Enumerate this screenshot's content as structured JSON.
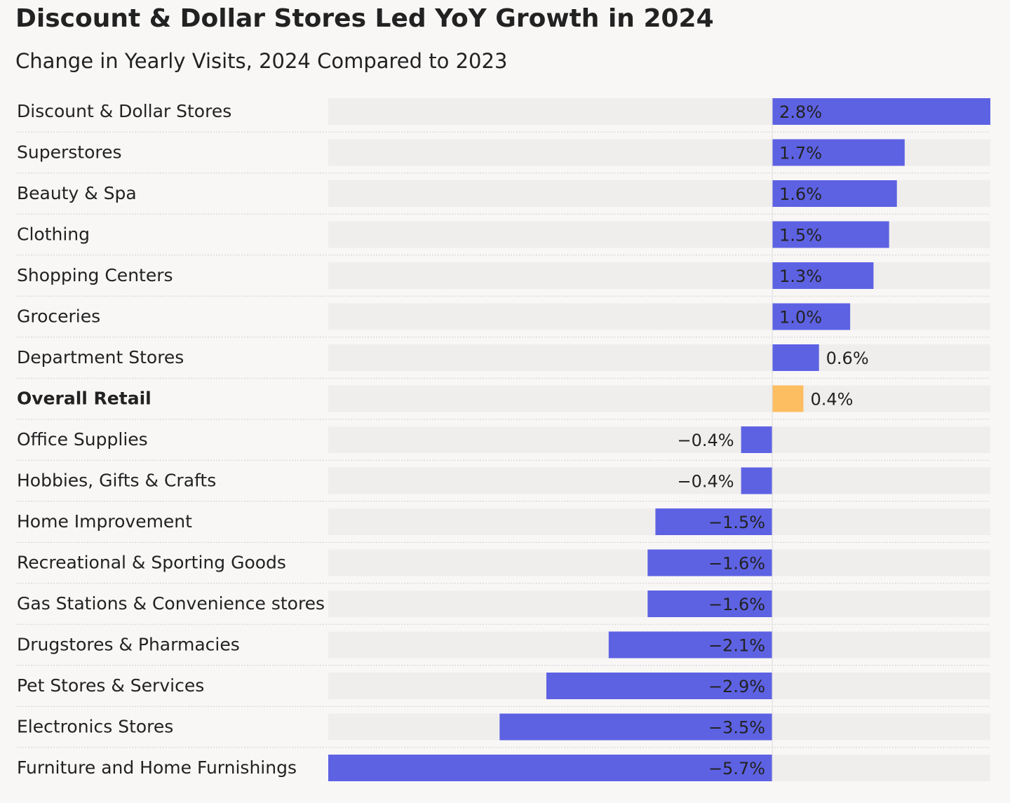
{
  "chart_data": {
    "type": "hbar",
    "title": "Discount & Dollar Stores Led YoY Growth in 2024",
    "subtitle": "Change in Yearly Visits, 2024 Compared to 2023",
    "categories": [
      "Discount & Dollar Stores",
      "Superstores",
      "Beauty & Spa",
      "Clothing",
      "Shopping Centers",
      "Groceries",
      "Department Stores",
      "Overall Retail",
      "Office Supplies",
      "Hobbies, Gifts & Crafts",
      "Home Improvement",
      "Recreational & Sporting Goods",
      "Gas Stations & Convenience stores",
      "Drugstores & Pharmacies",
      "Pet Stores & Services",
      "Electronics Stores",
      "Furniture and Home Furnishings"
    ],
    "values": [
      2.8,
      1.7,
      1.6,
      1.5,
      1.3,
      1.0,
      0.6,
      0.4,
      -0.4,
      -0.4,
      -1.5,
      -1.6,
      -1.6,
      -2.1,
      -2.9,
      -3.5,
      -5.7
    ],
    "value_labels": [
      "2.8%",
      "1.7%",
      "1.6%",
      "1.5%",
      "1.3%",
      "1.0%",
      "0.6%",
      "0.4%",
      "−0.4%",
      "−0.4%",
      "−1.5%",
      "−1.6%",
      "−1.6%",
      "−2.1%",
      "−2.9%",
      "−3.5%",
      "−5.7%"
    ],
    "color": "#5d62e3",
    "highlight": {
      "index": 7,
      "color": "#fdbe62"
    },
    "xlim": [
      -5.7,
      2.8
    ]
  }
}
